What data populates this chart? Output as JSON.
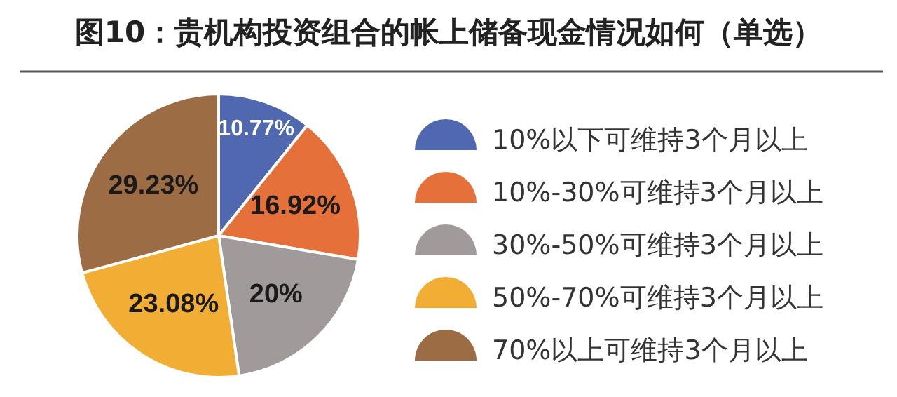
{
  "chart_data": {
    "type": "pie",
    "title": "图10：贵机构投资组合的帐上储备现金情况如何（单选）",
    "categories": [
      "10%以下可维持3个月以上",
      "10%-30%可维持3个月以上",
      "30%-50%可维持3个月以上",
      "50%-70%可维持3个月以上",
      "70%以上可维持3个月以上"
    ],
    "values": [
      10.77,
      16.92,
      20,
      23.08,
      29.23
    ],
    "colors": [
      "#4f68b0",
      "#e5703a",
      "#a09b9a",
      "#f2ae34",
      "#9c6c44"
    ],
    "value_labels": [
      "10.77%",
      "16.92%",
      "20%",
      "23.08%",
      "29.23%"
    ],
    "legend": "right"
  }
}
